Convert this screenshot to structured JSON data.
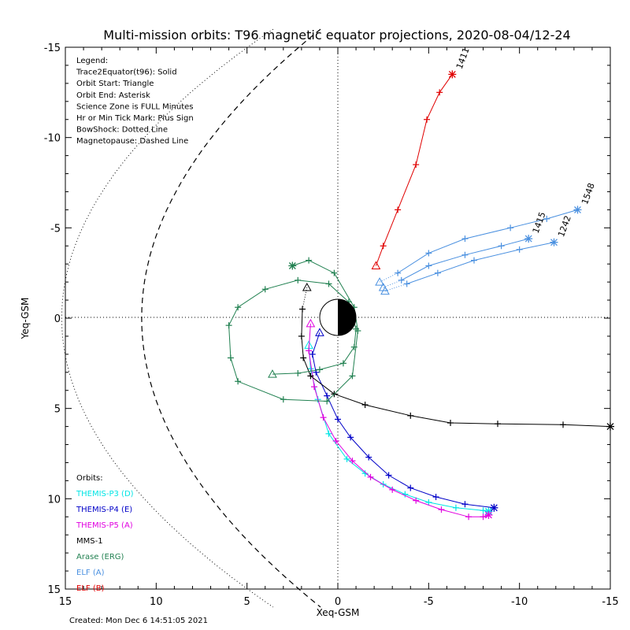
{
  "chart_data": {
    "type": "line",
    "title": "Multi-mission orbits: T96 magnetic equator projections, 2020-08-04/12-24",
    "xlabel": "Xeq-GSM",
    "ylabel": "Yeq-GSM",
    "xlim": [
      15,
      -15
    ],
    "ylim": [
      -15,
      15
    ],
    "x_ticks": [
      "15",
      "10",
      "5",
      "0",
      "-5",
      "-10",
      "-15"
    ],
    "y_ticks": [
      "-15",
      "-10",
      "-5",
      "0",
      "5",
      "10",
      "15"
    ],
    "created": "Created: Mon Dec  6 14:51:05 2021",
    "legend_lines": [
      "Legend:",
      "Trace2Equator(t96): Solid",
      "Orbit Start: Triangle",
      "Orbit End: Asterisk",
      "Science Zone is FULL Minutes",
      "Hr or Min Tick Mark: Plus Sign",
      "BowShock: Dotted Line",
      "Magnetopause: Dashed Line"
    ],
    "orbits_header": "Orbits:",
    "series": [
      {
        "name": "THEMIS-P3 (D)",
        "color": "#00e5e5",
        "points": [
          [
            1.6,
            1.5
          ],
          [
            1.5,
            2.8
          ],
          [
            1.1,
            4.5
          ],
          [
            0.5,
            6.4
          ],
          [
            -0.5,
            7.8
          ],
          [
            -1.5,
            8.6
          ],
          [
            -2.5,
            9.2
          ],
          [
            -3.7,
            9.75
          ],
          [
            -5.0,
            10.2
          ],
          [
            -6.5,
            10.5
          ],
          [
            -8.0,
            10.65
          ],
          [
            -8.3,
            10.7
          ]
        ]
      },
      {
        "name": "THEMIS-P4 (E)",
        "color": "#0000c8",
        "points": [
          [
            1.0,
            0.8
          ],
          [
            1.4,
            2.0
          ],
          [
            1.2,
            3.0
          ],
          [
            0.6,
            4.3
          ],
          [
            0.0,
            5.6
          ],
          [
            -0.7,
            6.6
          ],
          [
            -1.7,
            7.7
          ],
          [
            -2.8,
            8.7
          ],
          [
            -4.0,
            9.4
          ],
          [
            -5.4,
            9.9
          ],
          [
            -7.0,
            10.3
          ],
          [
            -8.6,
            10.5
          ]
        ]
      },
      {
        "name": "THEMIS-P5 (A)",
        "color": "#e000e0",
        "points": [
          [
            1.5,
            0.3
          ],
          [
            1.6,
            1.8
          ],
          [
            1.3,
            3.8
          ],
          [
            0.8,
            5.5
          ],
          [
            0.1,
            6.8
          ],
          [
            -0.8,
            7.9
          ],
          [
            -1.8,
            8.8
          ],
          [
            -3.0,
            9.5
          ],
          [
            -4.3,
            10.1
          ],
          [
            -5.7,
            10.6
          ],
          [
            -7.2,
            11.0
          ],
          [
            -8.0,
            11.0
          ],
          [
            -8.3,
            10.9
          ]
        ]
      },
      {
        "name": "MMS-1",
        "color": "#000000",
        "dotted_head": true,
        "points": [
          [
            1.7,
            -1.7
          ],
          [
            1.95,
            -0.5
          ],
          [
            2.0,
            1.0
          ],
          [
            1.9,
            2.2
          ],
          [
            1.5,
            3.2
          ],
          [
            0.2,
            4.2
          ],
          [
            -1.5,
            4.8
          ],
          [
            -4.0,
            5.4
          ],
          [
            -6.2,
            5.8
          ],
          [
            -8.8,
            5.85
          ],
          [
            -12.4,
            5.9
          ],
          [
            -15.0,
            6.0
          ]
        ]
      },
      {
        "name": "Arase (ERG)",
        "color": "#208050",
        "points": [
          [
            3.6,
            3.1
          ],
          [
            2.2,
            3.05
          ],
          [
            1.0,
            2.85
          ],
          [
            -0.3,
            2.5
          ],
          [
            -0.9,
            1.6
          ],
          [
            -1.0,
            0.6
          ],
          [
            -0.6,
            -0.9
          ],
          [
            0.5,
            -1.9
          ],
          [
            2.2,
            -2.1
          ],
          [
            4.0,
            -1.6
          ],
          [
            5.5,
            -0.6
          ],
          [
            6.0,
            0.4
          ],
          [
            5.9,
            2.2
          ],
          [
            5.5,
            3.5
          ],
          [
            3.0,
            4.5
          ],
          [
            0.6,
            4.6
          ],
          [
            -0.8,
            3.2
          ],
          [
            -1.1,
            0.7
          ],
          [
            -0.9,
            -0.6
          ],
          [
            0.2,
            -2.5
          ],
          [
            1.6,
            -3.2
          ],
          [
            2.5,
            -2.9
          ]
        ]
      },
      {
        "name": "ELF (A)",
        "color": "#4a90e0",
        "dotted_head": true,
        "labels": [
          "1548",
          "1415",
          "1242"
        ],
        "tracks": [
          [
            [
              -2.3,
              -2.0
            ],
            [
              -3.3,
              -2.5
            ],
            [
              -5.0,
              -3.6
            ],
            [
              -7.0,
              -4.4
            ],
            [
              -9.5,
              -5.0
            ],
            [
              -11.5,
              -5.5
            ],
            [
              -13.2,
              -6.0
            ]
          ],
          [
            [
              -2.5,
              -1.7
            ],
            [
              -3.5,
              -2.1
            ],
            [
              -5.0,
              -2.9
            ],
            [
              -7.0,
              -3.5
            ],
            [
              -9.0,
              -4.0
            ],
            [
              -10.5,
              -4.4
            ]
          ],
          [
            [
              -2.6,
              -1.5
            ],
            [
              -3.8,
              -1.9
            ],
            [
              -5.5,
              -2.5
            ],
            [
              -7.5,
              -3.2
            ],
            [
              -10.0,
              -3.8
            ],
            [
              -11.9,
              -4.2
            ]
          ]
        ]
      },
      {
        "name": "ELF (B)",
        "color": "#e00000",
        "labels": [
          "1411"
        ],
        "points": [
          [
            -2.1,
            -2.9
          ],
          [
            -2.5,
            -4.0
          ],
          [
            -3.3,
            -6.0
          ],
          [
            -4.3,
            -8.5
          ],
          [
            -4.9,
            -11.0
          ],
          [
            -5.6,
            -12.5
          ],
          [
            -6.3,
            -13.5
          ]
        ]
      }
    ],
    "bow_shock": "dotted",
    "magnetopause": "dashed",
    "grid": "dotted zero lines"
  }
}
